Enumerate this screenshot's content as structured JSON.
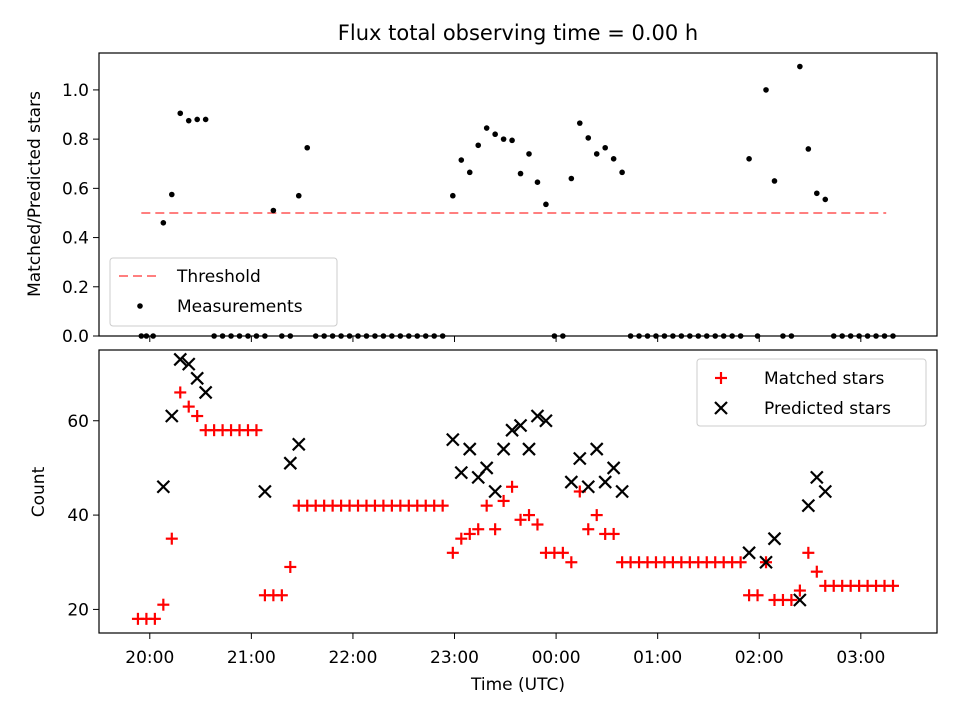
{
  "chart_data": [
    {
      "type": "scatter",
      "title": "Flux total observing time = 0.00 h",
      "ylabel": "Matched/Predicted stars",
      "xlabel": "",
      "ylim": [
        0,
        1.15
      ],
      "yticks": [
        "0.0",
        "0.2",
        "0.4",
        "0.6",
        "0.8",
        "1.0"
      ],
      "ytick_values": [
        0,
        0.2,
        0.4,
        0.6,
        0.8,
        1.0
      ],
      "legend": {
        "placement": "lower-left",
        "entries": [
          "Threshold",
          "Measurements"
        ]
      },
      "threshold": {
        "name": "Threshold",
        "value": 0.5,
        "x_start": "19:55",
        "x_end": "03:15",
        "color": "#ff7f7f",
        "style": "dashed"
      },
      "series": [
        {
          "name": "Measurements",
          "color": "#000000",
          "points": [
            [
              "19:55",
              0.0
            ],
            [
              "19:58",
              0.0
            ],
            [
              "20:02",
              0.0
            ],
            [
              "20:08",
              0.46
            ],
            [
              "20:13",
              0.575
            ],
            [
              "20:18",
              0.905
            ],
            [
              "20:23",
              0.875
            ],
            [
              "20:28",
              0.88
            ],
            [
              "20:33",
              0.88
            ],
            [
              "20:38",
              0.0
            ],
            [
              "20:43",
              0.0
            ],
            [
              "20:48",
              0.0
            ],
            [
              "20:53",
              0.0
            ],
            [
              "20:58",
              0.0
            ],
            [
              "21:03",
              0.0
            ],
            [
              "21:08",
              0.0
            ],
            [
              "21:13",
              0.51
            ],
            [
              "21:18",
              0.0
            ],
            [
              "21:23",
              0.0
            ],
            [
              "21:28",
              0.57
            ],
            [
              "21:33",
              0.765
            ],
            [
              "21:38",
              0.0
            ],
            [
              "21:43",
              0.0
            ],
            [
              "21:48",
              0.0
            ],
            [
              "21:53",
              0.0
            ],
            [
              "21:58",
              0.0
            ],
            [
              "22:03",
              0.0
            ],
            [
              "22:08",
              0.0
            ],
            [
              "22:13",
              0.0
            ],
            [
              "22:18",
              0.0
            ],
            [
              "22:23",
              0.0
            ],
            [
              "22:28",
              0.0
            ],
            [
              "22:33",
              0.0
            ],
            [
              "22:38",
              0.0
            ],
            [
              "22:43",
              0.0
            ],
            [
              "22:48",
              0.0
            ],
            [
              "22:53",
              0.0
            ],
            [
              "22:59",
              0.57
            ],
            [
              "23:04",
              0.715
            ],
            [
              "23:09",
              0.665
            ],
            [
              "23:14",
              0.775
            ],
            [
              "23:19",
              0.845
            ],
            [
              "23:24",
              0.82
            ],
            [
              "23:29",
              0.8
            ],
            [
              "23:34",
              0.795
            ],
            [
              "23:39",
              0.66
            ],
            [
              "23:44",
              0.74
            ],
            [
              "23:49",
              0.625
            ],
            [
              "23:54",
              0.535
            ],
            [
              "23:59",
              0.0
            ],
            [
              "00:04",
              0.0
            ],
            [
              "00:09",
              0.64
            ],
            [
              "00:14",
              0.865
            ],
            [
              "00:19",
              0.805
            ],
            [
              "00:24",
              0.74
            ],
            [
              "00:29",
              0.765
            ],
            [
              "00:34",
              0.72
            ],
            [
              "00:39",
              0.665
            ],
            [
              "00:44",
              0.0
            ],
            [
              "00:49",
              0.0
            ],
            [
              "00:54",
              0.0
            ],
            [
              "00:59",
              0.0
            ],
            [
              "01:04",
              0.0
            ],
            [
              "01:09",
              0.0
            ],
            [
              "01:14",
              0.0
            ],
            [
              "01:19",
              0.0
            ],
            [
              "01:24",
              0.0
            ],
            [
              "01:29",
              0.0
            ],
            [
              "01:34",
              0.0
            ],
            [
              "01:39",
              0.0
            ],
            [
              "01:44",
              0.0
            ],
            [
              "01:49",
              0.0
            ],
            [
              "01:54",
              0.72
            ],
            [
              "01:59",
              0.0
            ],
            [
              "02:04",
              1.0
            ],
            [
              "02:09",
              0.63
            ],
            [
              "02:14",
              0.0
            ],
            [
              "02:19",
              0.0
            ],
            [
              "02:24",
              1.095
            ],
            [
              "02:29",
              0.76
            ],
            [
              "02:34",
              0.58
            ],
            [
              "02:39",
              0.555
            ],
            [
              "02:44",
              0.0
            ],
            [
              "02:49",
              0.0
            ],
            [
              "02:54",
              0.0
            ],
            [
              "02:59",
              0.0
            ],
            [
              "03:04",
              0.0
            ],
            [
              "03:09",
              0.0
            ],
            [
              "03:14",
              0.0
            ],
            [
              "03:19",
              0.0
            ]
          ]
        }
      ]
    },
    {
      "type": "scatter",
      "title": "",
      "ylabel": "Count",
      "xlabel": "Time (UTC)",
      "ylim": [
        15,
        75
      ],
      "yticks": [
        "20",
        "40",
        "60"
      ],
      "ytick_values": [
        20,
        40,
        60
      ],
      "xticks": [
        "20:00",
        "21:00",
        "22:00",
        "23:00",
        "00:00",
        "01:00",
        "02:00",
        "03:00"
      ],
      "xlim": [
        "19:30",
        "03:45"
      ],
      "legend": {
        "placement": "upper-right",
        "entries": [
          "Matched stars",
          "Predicted stars"
        ]
      },
      "series": [
        {
          "name": "Matched stars",
          "color": "#ff0000",
          "marker": "+",
          "points": [
            [
              "19:53",
              18
            ],
            [
              "19:58",
              18
            ],
            [
              "20:03",
              18
            ],
            [
              "20:08",
              21
            ],
            [
              "20:13",
              35
            ],
            [
              "20:18",
              66
            ],
            [
              "20:23",
              63
            ],
            [
              "20:28",
              61
            ],
            [
              "20:33",
              58
            ],
            [
              "20:38",
              58
            ],
            [
              "20:43",
              58
            ],
            [
              "20:48",
              58
            ],
            [
              "20:53",
              58
            ],
            [
              "20:58",
              58
            ],
            [
              "21:03",
              58
            ],
            [
              "21:08",
              23
            ],
            [
              "21:13",
              23
            ],
            [
              "21:18",
              23
            ],
            [
              "21:23",
              29
            ],
            [
              "21:28",
              42
            ],
            [
              "21:33",
              42
            ],
            [
              "21:38",
              42
            ],
            [
              "21:43",
              42
            ],
            [
              "21:48",
              42
            ],
            [
              "21:53",
              42
            ],
            [
              "21:58",
              42
            ],
            [
              "22:03",
              42
            ],
            [
              "22:08",
              42
            ],
            [
              "22:13",
              42
            ],
            [
              "22:18",
              42
            ],
            [
              "22:23",
              42
            ],
            [
              "22:28",
              42
            ],
            [
              "22:33",
              42
            ],
            [
              "22:38",
              42
            ],
            [
              "22:43",
              42
            ],
            [
              "22:48",
              42
            ],
            [
              "22:53",
              42
            ],
            [
              "22:59",
              32
            ],
            [
              "23:04",
              35
            ],
            [
              "23:09",
              36
            ],
            [
              "23:14",
              37
            ],
            [
              "23:19",
              42
            ],
            [
              "23:24",
              37
            ],
            [
              "23:29",
              43
            ],
            [
              "23:34",
              46
            ],
            [
              "23:39",
              39
            ],
            [
              "23:44",
              40
            ],
            [
              "23:49",
              38
            ],
            [
              "23:54",
              32
            ],
            [
              "23:59",
              32
            ],
            [
              "00:04",
              32
            ],
            [
              "00:09",
              30
            ],
            [
              "00:14",
              45
            ],
            [
              "00:19",
              37
            ],
            [
              "00:24",
              40
            ],
            [
              "00:29",
              36
            ],
            [
              "00:34",
              36
            ],
            [
              "00:39",
              30
            ],
            [
              "00:44",
              30
            ],
            [
              "00:49",
              30
            ],
            [
              "00:54",
              30
            ],
            [
              "00:59",
              30
            ],
            [
              "01:04",
              30
            ],
            [
              "01:09",
              30
            ],
            [
              "01:14",
              30
            ],
            [
              "01:19",
              30
            ],
            [
              "01:24",
              30
            ],
            [
              "01:29",
              30
            ],
            [
              "01:34",
              30
            ],
            [
              "01:39",
              30
            ],
            [
              "01:44",
              30
            ],
            [
              "01:49",
              30
            ],
            [
              "01:54",
              23
            ],
            [
              "01:59",
              23
            ],
            [
              "02:04",
              30
            ],
            [
              "02:09",
              22
            ],
            [
              "02:14",
              22
            ],
            [
              "02:19",
              22
            ],
            [
              "02:24",
              24
            ],
            [
              "02:29",
              32
            ],
            [
              "02:34",
              28
            ],
            [
              "02:39",
              25
            ],
            [
              "02:44",
              25
            ],
            [
              "02:49",
              25
            ],
            [
              "02:54",
              25
            ],
            [
              "02:59",
              25
            ],
            [
              "03:04",
              25
            ],
            [
              "03:09",
              25
            ],
            [
              "03:14",
              25
            ],
            [
              "03:19",
              25
            ]
          ]
        },
        {
          "name": "Predicted stars",
          "color": "#000000",
          "marker": "x",
          "points": [
            [
              "20:08",
              46
            ],
            [
              "20:13",
              61
            ],
            [
              "20:18",
              73
            ],
            [
              "20:23",
              72
            ],
            [
              "20:28",
              69
            ],
            [
              "20:33",
              66
            ],
            [
              "21:08",
              45
            ],
            [
              "21:23",
              51
            ],
            [
              "21:28",
              55
            ],
            [
              "22:59",
              56
            ],
            [
              "23:04",
              49
            ],
            [
              "23:09",
              54
            ],
            [
              "23:14",
              48
            ],
            [
              "23:19",
              50
            ],
            [
              "23:24",
              45
            ],
            [
              "23:29",
              54
            ],
            [
              "23:34",
              58
            ],
            [
              "23:39",
              59
            ],
            [
              "23:44",
              54
            ],
            [
              "23:49",
              61
            ],
            [
              "23:54",
              60
            ],
            [
              "00:09",
              47
            ],
            [
              "00:14",
              52
            ],
            [
              "00:19",
              46
            ],
            [
              "00:24",
              54
            ],
            [
              "00:29",
              47
            ],
            [
              "00:34",
              50
            ],
            [
              "00:39",
              45
            ],
            [
              "01:54",
              32
            ],
            [
              "02:04",
              30
            ],
            [
              "02:09",
              35
            ],
            [
              "02:24",
              22
            ],
            [
              "02:29",
              42
            ],
            [
              "02:34",
              48
            ],
            [
              "02:39",
              45
            ]
          ]
        }
      ]
    }
  ]
}
